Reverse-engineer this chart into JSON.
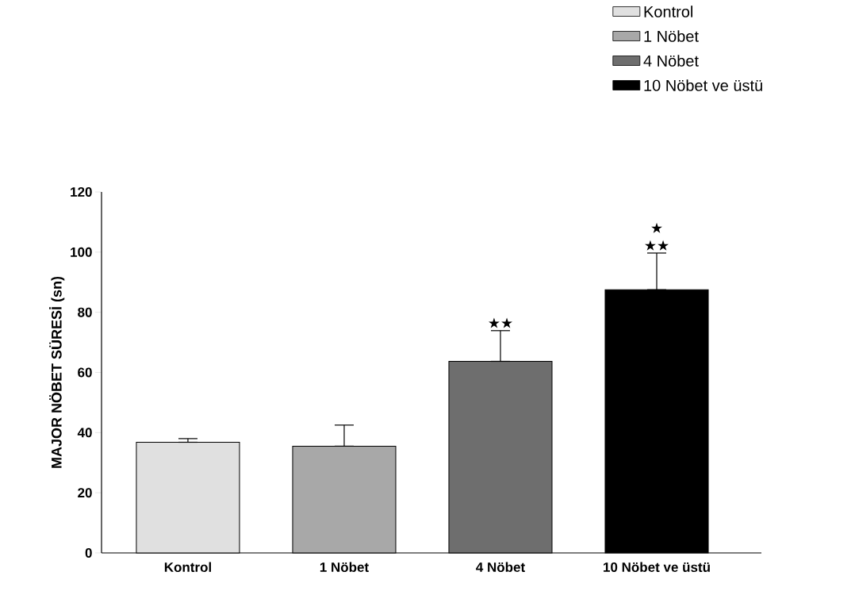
{
  "chart_data": {
    "type": "bar",
    "ylabel": "MAJOR NÖBET SÜRESİ (sn)",
    "categories": [
      "Kontrol",
      "1 Nöbet",
      "4 Nöbet",
      "10 Nöbet ve üstü"
    ],
    "series": [
      {
        "name": "Kontrol",
        "color": "#e0e0e0",
        "values": [
          36.8,
          null,
          null,
          null
        ],
        "errors": [
          [
            36.8,
            38.0
          ],
          null,
          null,
          null
        ]
      },
      {
        "name": "1 Nöbet",
        "color": "#a8a8a8",
        "values": [
          null,
          35.5,
          null,
          null
        ],
        "errors": [
          null,
          [
            35.5,
            42.5
          ],
          null,
          null
        ]
      },
      {
        "name": "4 Nöbet",
        "color": "#6e6e6e",
        "values": [
          null,
          null,
          63.7,
          null
        ],
        "errors": [
          null,
          null,
          [
            63.7,
            73.9
          ],
          null
        ]
      },
      {
        "name": "10 Nöbet ve üstü",
        "color": "#000000",
        "values": [
          null,
          null,
          null,
          87.5
        ],
        "errors": [
          null,
          null,
          null,
          [
            87.5,
            99.7
          ]
        ]
      }
    ],
    "ylim": [
      0,
      120
    ],
    "yticks": [
      0,
      20,
      40,
      60,
      80,
      100,
      120
    ],
    "legend": "top right",
    "annotations": [
      "★★",
      "★★",
      "★"
    ]
  }
}
